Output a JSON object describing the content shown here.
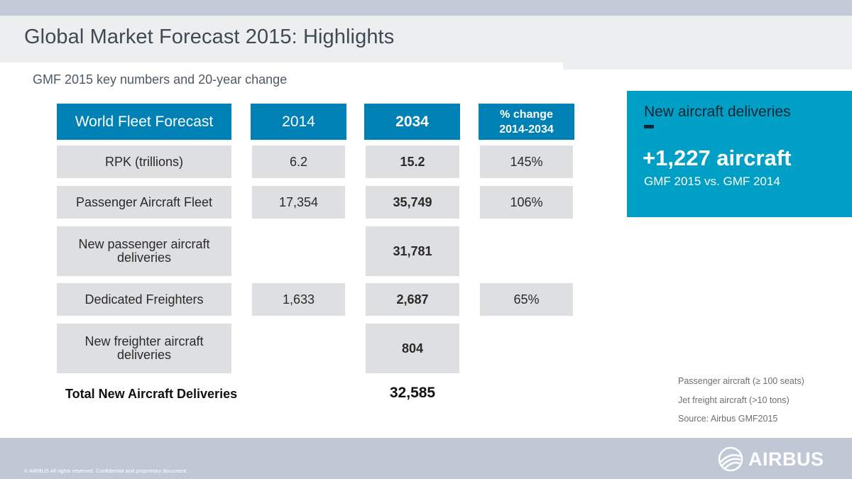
{
  "header": {
    "title": "Global Market Forecast 2015: Highlights",
    "subtitle": "GMF 2015 key numbers and 20-year change"
  },
  "table": {
    "headers": {
      "label": "World Fleet Forecast",
      "y2014": "2014",
      "y2034": "2034",
      "change_line1": "% change",
      "change_line2": "2014-2034"
    },
    "rows": [
      {
        "label": "RPK (trillions)",
        "y2014": "6.2",
        "y2034": "15.2",
        "change": "145%"
      },
      {
        "label": "Passenger Aircraft Fleet",
        "y2014": "17,354",
        "y2034": "35,749",
        "change": "106%"
      },
      {
        "label_line1": "New passenger aircraft",
        "label_line2": "deliveries",
        "y2034": "31,781"
      },
      {
        "label": "Dedicated Freighters",
        "y2014": "1,633",
        "y2034": "2,687",
        "change": "65%"
      },
      {
        "label_line1": "New freighter aircraft",
        "label_line2": "deliveries",
        "y2034": "804"
      }
    ],
    "total_label": "Total New Aircraft Deliveries",
    "total_value": "32,585"
  },
  "callout": {
    "title": "New aircraft deliveries",
    "value": "+1,227 aircraft",
    "comparison": "GMF 2015 vs. GMF 2014"
  },
  "notes": [
    "Passenger aircraft (≥ 100 seats)",
    "Jet freight aircraft (>10 tons)",
    "Source: Airbus GMF2015"
  ],
  "footer": {
    "copyright": "© AIRBUS All rights reserved. Confidential and proprietary document.",
    "logo": "AIRBUS"
  },
  "colors": {
    "header_blue": "#0081b6",
    "callout_cyan": "#00a0c6",
    "cell_grey": "#dedfe1",
    "footer_band": "#c0c8d6"
  }
}
